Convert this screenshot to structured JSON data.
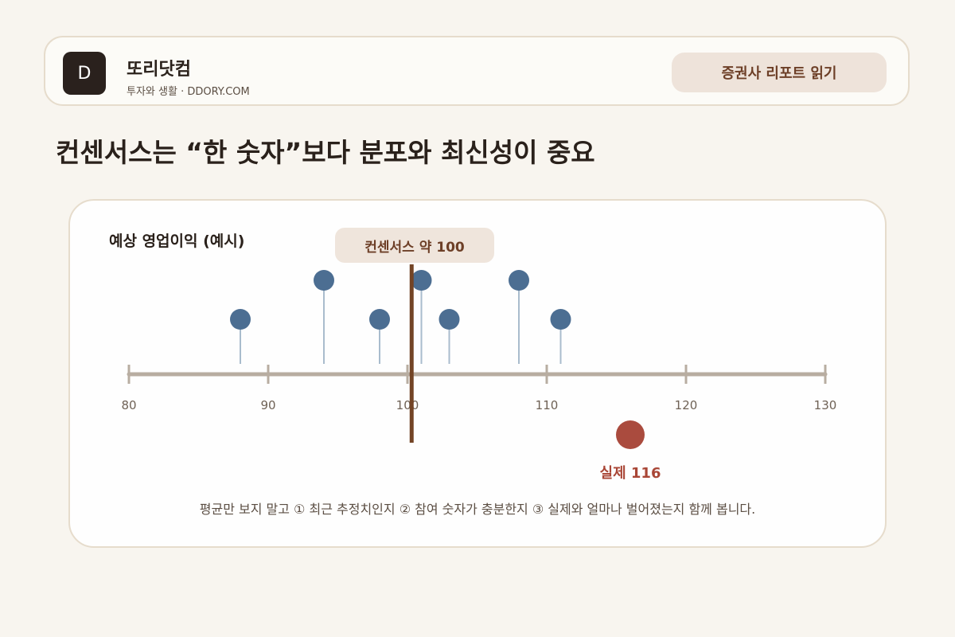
{
  "header": {
    "logo_letter": "D",
    "site_name": "또리닷컴",
    "site_subtitle": "투자와 생활 · DDORY.COM",
    "button_label": "증권사 리포트 읽기"
  },
  "page_title": "컨센서스는 “한 숫자”보다 분포와 최신성이 중요",
  "card": {
    "chart_label": "예상 영업이익 (예시)",
    "consensus_label": "컨센서스 약 100",
    "actual_label": "실제 116",
    "caption": "평균만 보지 말고 ① 최근 추정치인지 ② 참여 숫자가 충분한지 ③ 실제와 얼마나 벌어졌는지 함께 봅니다."
  },
  "chart_data": {
    "type": "scatter",
    "axis": {
      "min": 80,
      "max": 130,
      "ticks": [
        80,
        90,
        100,
        110,
        120,
        130
      ]
    },
    "estimates": [
      88,
      94,
      98,
      101,
      103,
      108,
      111
    ],
    "consensus": 100.3,
    "actual": 116,
    "colors": {
      "estimate": "#4c6e92",
      "stem": "#a9bccd",
      "axis": "#b8ada1",
      "consensus_line": "#734425",
      "actual": "#aa4b3e",
      "tick_label": "#6f6256"
    }
  }
}
